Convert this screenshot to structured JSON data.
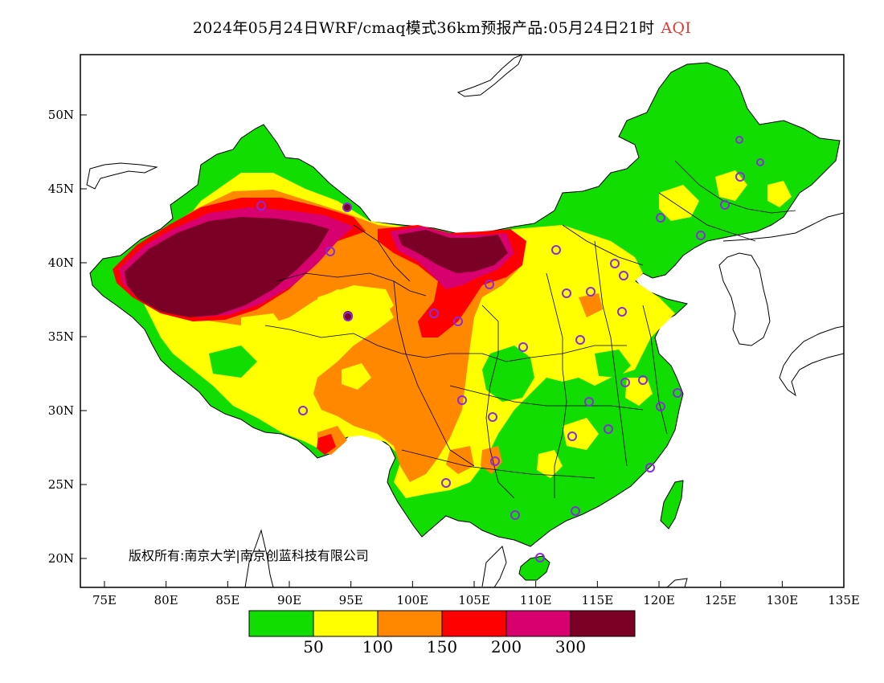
{
  "title": {
    "main": "2024年05月24日WRF/cmaq模式36km预报产品:05月24日21时",
    "variable": "AQI"
  },
  "copyright": "版权所有:南京大学|南京创蓝科技有限公司",
  "axes": {
    "lat_labels": [
      "50N",
      "45N",
      "40N",
      "35N",
      "30N",
      "25N",
      "20N"
    ],
    "lon_labels": [
      "75E",
      "80E",
      "85E",
      "90E",
      "95E",
      "100E",
      "105E",
      "110E",
      "115E",
      "120E",
      "125E",
      "130E",
      "135E"
    ]
  },
  "colorbar": {
    "colors": [
      "#11dd00",
      "#ffff00",
      "#ff8800",
      "#ff0000",
      "#d8006e",
      "#7a0025"
    ],
    "labels": [
      "50",
      "100",
      "150",
      "200",
      "300"
    ]
  },
  "colors": {
    "good": "#11dd00",
    "moderate": "#ffff00",
    "usg": "#ff8800",
    "unhealthy": "#ff0000",
    "very_unhealthy": "#d8006e",
    "hazardous": "#7a0025",
    "station_ring": "#8a2be2"
  }
}
